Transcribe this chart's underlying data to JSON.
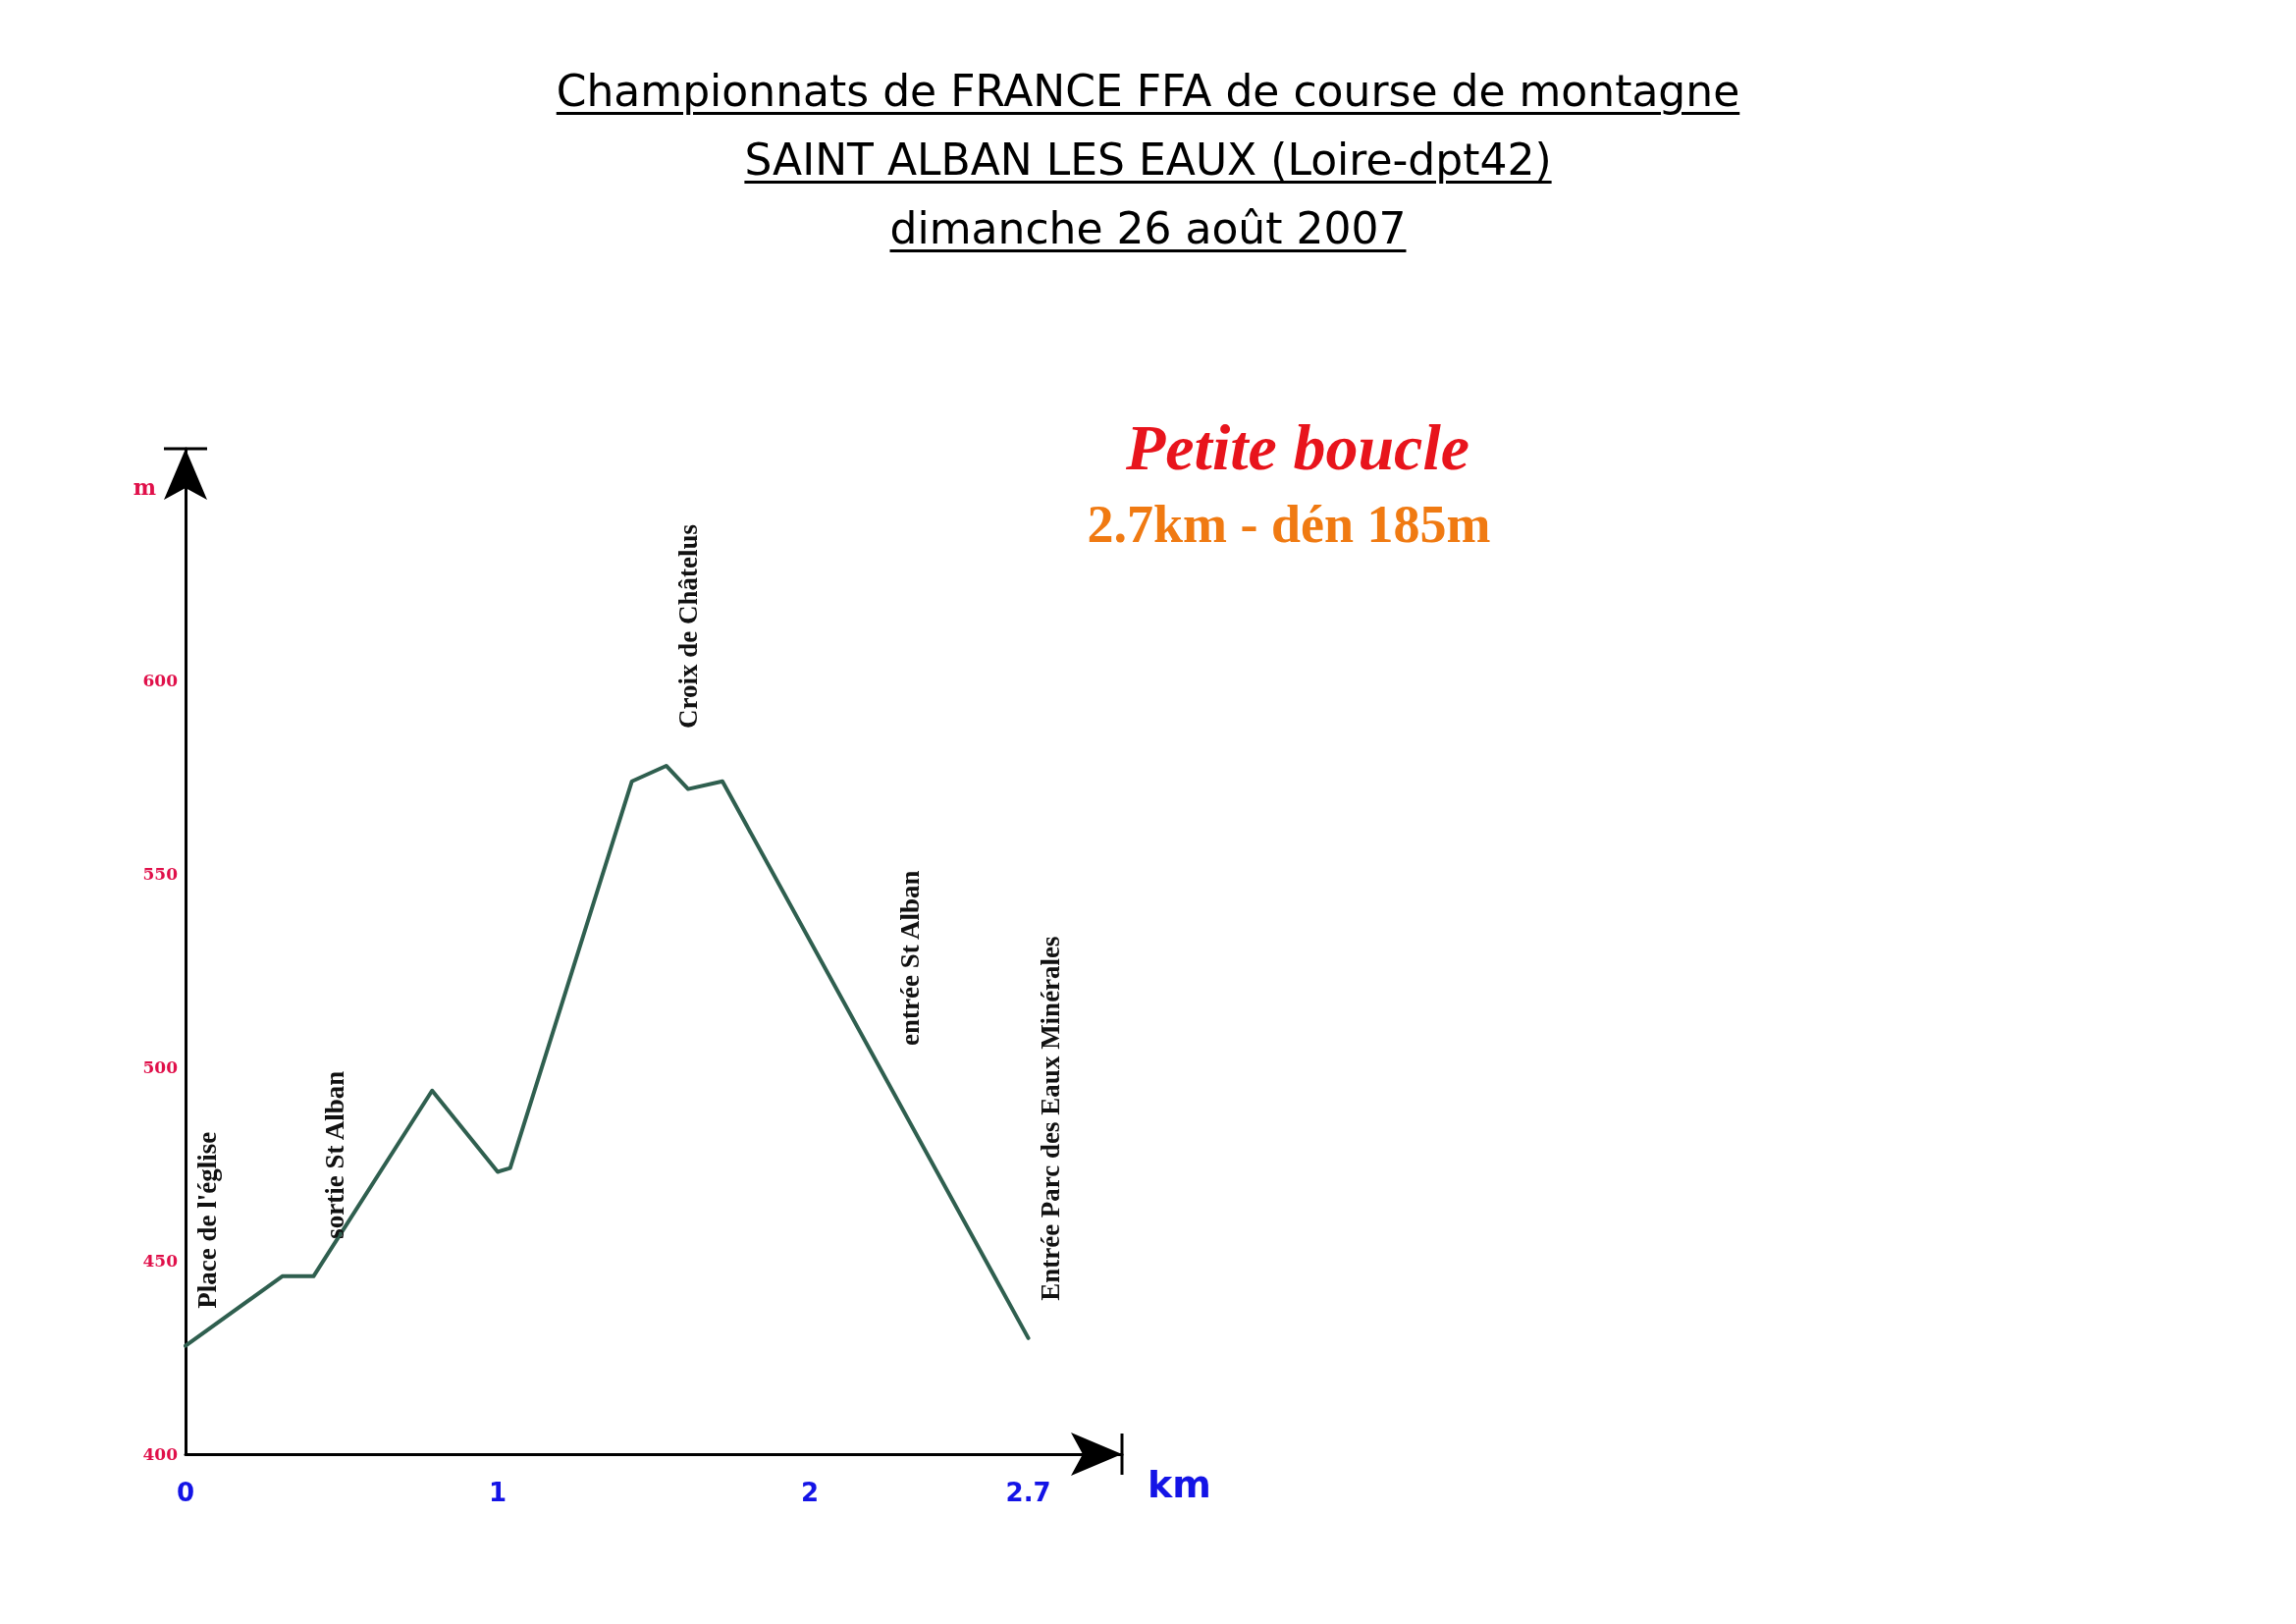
{
  "chart_data": {
    "type": "line",
    "title": "Championnats de FRANCE FFA de course de montagne\nSAINT ALBAN LES EAUX (Loire-dpt42)\ndimanche 26 août 2007",
    "subtitle": "Petite boucle",
    "xlabel": "km",
    "ylabel": "m",
    "annotations": [
      "2.7km - dén 185m",
      {
        "text": "Place de l'église",
        "x": 0,
        "y": 428
      },
      {
        "text": "sortie St Alban",
        "x": 0.41,
        "y": 446
      },
      {
        "text": "Croix de Châtelus",
        "x": 1.54,
        "y": 578
      },
      {
        "text": "entrée St Alban",
        "x": 2.25,
        "y": 496
      },
      {
        "text": "Entrée Parc des Eaux Minérales",
        "x": 2.7,
        "y": 430
      }
    ],
    "x": [
      0,
      0.31,
      0.41,
      0.79,
      1.0,
      1.04,
      1.43,
      1.54,
      1.61,
      1.72,
      2.7
    ],
    "series": [
      {
        "color": "#2f5f4f",
        "values": [
          428,
          446,
          446,
          494,
          473,
          474,
          574,
          578,
          572,
          574,
          430
        ]
      }
    ],
    "xlim": [
      0,
      3
    ],
    "ylim": [
      400,
      660
    ],
    "xticks": [
      0,
      1,
      2,
      2.7
    ],
    "yticks": [
      400,
      450,
      500,
      550,
      600
    ],
    "grid": false,
    "marker": "none",
    "line_style": "solid"
  }
}
